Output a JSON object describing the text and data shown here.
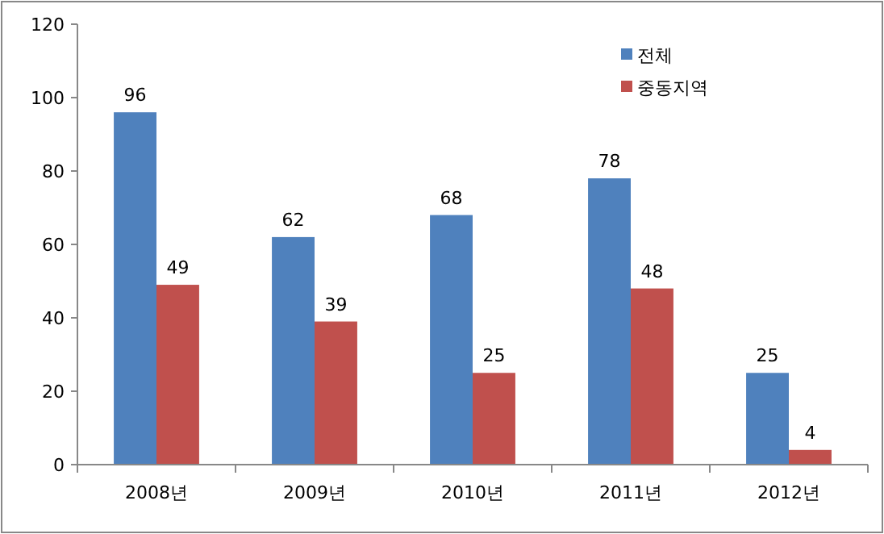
{
  "chart_data": {
    "type": "bar",
    "categories": [
      "2008년",
      "2009년",
      "2010년",
      "2011년",
      "2012년"
    ],
    "series": [
      {
        "name": "전체",
        "color": "#4f81bd",
        "values": [
          96,
          62,
          68,
          78,
          25
        ]
      },
      {
        "name": "중동지역",
        "color": "#c0504d",
        "values": [
          49,
          39,
          25,
          48,
          4
        ]
      }
    ],
    "ylim": [
      0,
      120
    ],
    "yticks": [
      0,
      20,
      40,
      60,
      80,
      100,
      120
    ],
    "data_labels": true,
    "legend": "top right"
  }
}
